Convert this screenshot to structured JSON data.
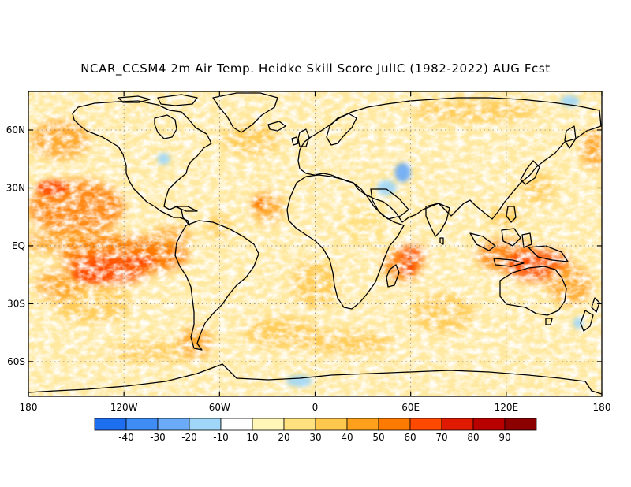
{
  "title": "NCAR_CCSM4 2m Air Temp. Heidke Skill Score JulIC (1982-2022) AUG Fcst",
  "lat_labels": [
    "60N",
    "30N",
    "EQ",
    "30S",
    "60S"
  ],
  "lat_values": [
    60,
    30,
    0,
    -30,
    -60
  ],
  "lon_labels": [
    "180",
    "120W",
    "60W",
    "0",
    "60E",
    "120E",
    "180"
  ],
  "lon_values": [
    -180,
    -120,
    -60,
    0,
    60,
    120,
    180
  ],
  "extent": {
    "lon": [
      -180,
      180
    ],
    "lat": [
      -78,
      80
    ]
  },
  "colorbar": {
    "labels": [
      "-40",
      "-30",
      "-20",
      "-10",
      "10",
      "20",
      "30",
      "40",
      "50",
      "60",
      "70",
      "80",
      "90"
    ],
    "colors": [
      "#1e6ff0",
      "#3f8cf5",
      "#6aaaf7",
      "#a0d6f7",
      "#ffffff",
      "#fff6b8",
      "#ffe17f",
      "#ffc84d",
      "#ffa01c",
      "#ff7a00",
      "#ff4a00",
      "#e01a00",
      "#b80000",
      "#8c0000"
    ]
  },
  "field_colors": {
    "white": "#ffffff",
    "pale": "#fff6b8",
    "light": "#ffe17f",
    "mid": "#ffc84d",
    "orange": "#ffa01c",
    "deep": "#ff7a00",
    "red": "#ff4a00",
    "blue": "#a0d6f7",
    "blue_mid": "#6aaaf7"
  }
}
